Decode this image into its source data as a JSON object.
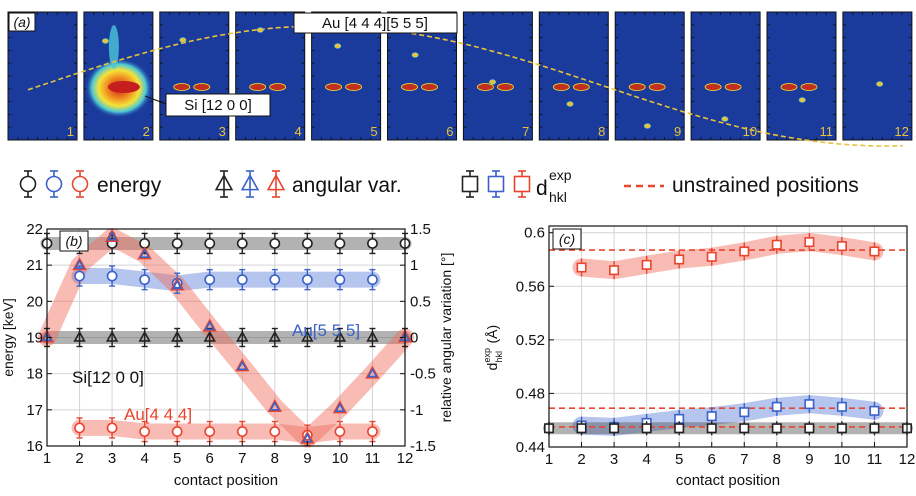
{
  "panel_a": {
    "label": "(a)",
    "frame_numbers": [
      "1",
      "2",
      "3",
      "4",
      "5",
      "6",
      "7",
      "8",
      "9",
      "10",
      "11",
      "12"
    ],
    "annotation_au": "Au [4 4 4][5 5 5]",
    "annotation_si": "Si [12 0 0]",
    "colors": {
      "background": "#1a3a9c",
      "trace": "#e7c23a",
      "spot": "#c0301c"
    }
  },
  "legend": {
    "energy": "energy",
    "angular": "angular var.",
    "d_main": "d",
    "d_sub": "hkl",
    "d_sup": "exp",
    "unstrained": "unstrained positions"
  },
  "colors": {
    "black": "#222222",
    "blue": "#3a62c8",
    "red": "#e8452f"
  },
  "chart_data": [
    {
      "type": "line",
      "panel_label": "(b)",
      "xlabel": "contact position",
      "ylabel_left": "energy [keV]",
      "ylabel_right": "relative angular variation [°]",
      "x_ticks": [
        1,
        2,
        3,
        4,
        5,
        6,
        7,
        8,
        9,
        10,
        11,
        12
      ],
      "ylim_left": [
        16,
        22
      ],
      "yticks_left": [
        16,
        17,
        18,
        19,
        20,
        21,
        22
      ],
      "ylim_right": [
        -1.5,
        1.5
      ],
      "yticks_right": [
        -1.5,
        -1,
        -0.5,
        0,
        0.5,
        1,
        1.5
      ],
      "ytick_labels_right": [
        "-1.5",
        "-1",
        "-0.5",
        "0",
        "0.5",
        "1",
        "1.5"
      ],
      "grid": true,
      "series_labels": {
        "au555": "Au[5 5 5]",
        "si": "Si[12 0 0]",
        "au444": "Au[4 4 4]"
      },
      "energy_series": [
        {
          "color": "black",
          "x": [
            1,
            2,
            3,
            4,
            5,
            6,
            7,
            8,
            9,
            10,
            11,
            12
          ],
          "y": [
            21.6,
            21.6,
            21.6,
            21.6,
            21.6,
            21.6,
            21.6,
            21.6,
            21.6,
            21.6,
            21.6,
            21.6
          ]
        },
        {
          "color": "blue",
          "x": [
            2,
            3,
            4,
            5,
            6,
            7,
            8,
            9,
            10,
            11
          ],
          "y": [
            20.7,
            20.7,
            20.6,
            20.5,
            20.6,
            20.6,
            20.6,
            20.6,
            20.6,
            20.6
          ]
        },
        {
          "color": "red",
          "x": [
            2,
            3,
            4,
            5,
            6,
            7,
            8,
            9,
            10,
            11
          ],
          "y": [
            16.5,
            16.5,
            16.4,
            16.4,
            16.4,
            16.4,
            16.4,
            16.3,
            16.4,
            16.4
          ]
        }
      ],
      "angular_series": [
        {
          "color": "black",
          "x": [
            1,
            2,
            3,
            4,
            5,
            6,
            7,
            8,
            9,
            10,
            11,
            12
          ],
          "y": [
            0,
            0,
            0,
            0,
            0,
            0,
            0,
            0,
            0,
            0,
            0,
            0
          ]
        },
        {
          "color": "blue",
          "x": [
            1,
            2,
            3,
            4,
            5,
            6,
            7,
            8,
            9,
            10,
            11,
            12
          ],
          "y": [
            0,
            1.0,
            1.39,
            1.15,
            0.72,
            0.15,
            -0.4,
            -0.96,
            -1.4,
            -0.98,
            -0.5,
            0
          ]
        },
        {
          "color": "red",
          "x": [
            1,
            2,
            3,
            4,
            5,
            6,
            7,
            8,
            9,
            10,
            11,
            12
          ],
          "y": [
            0,
            1.0,
            1.39,
            1.15,
            0.72,
            0.15,
            -0.4,
            -0.96,
            -1.4,
            -0.98,
            -0.5,
            0
          ]
        }
      ]
    },
    {
      "type": "line",
      "panel_label": "(c)",
      "xlabel": "contact position",
      "ylabel": "d",
      "ylabel_sub": "hkl",
      "ylabel_sup": "exp",
      "ylabel_unit": "(Å)",
      "x_ticks": [
        1,
        2,
        3,
        4,
        5,
        6,
        7,
        8,
        9,
        10,
        11,
        12
      ],
      "ylim": [
        0.44,
        0.605
      ],
      "yticks": [
        0.44,
        0.48,
        0.52,
        0.56,
        0.6
      ],
      "ytick_labels": [
        "0.44",
        "0.48",
        "0.52",
        "0.56",
        "0.6"
      ],
      "grid": true,
      "series": [
        {
          "color": "red",
          "x": [
            2,
            3,
            4,
            5,
            6,
            7,
            8,
            9,
            10,
            11
          ],
          "y": [
            0.574,
            0.572,
            0.576,
            0.58,
            0.582,
            0.586,
            0.591,
            0.593,
            0.59,
            0.586
          ]
        },
        {
          "color": "blue",
          "x": [
            2,
            3,
            4,
            5,
            6,
            7,
            8,
            9,
            10,
            11
          ],
          "y": [
            0.456,
            0.455,
            0.458,
            0.461,
            0.463,
            0.466,
            0.47,
            0.472,
            0.47,
            0.467
          ]
        },
        {
          "color": "black",
          "x": [
            1,
            2,
            3,
            4,
            5,
            6,
            7,
            8,
            9,
            10,
            11,
            12
          ],
          "y": [
            0.454,
            0.454,
            0.454,
            0.454,
            0.454,
            0.454,
            0.454,
            0.454,
            0.454,
            0.454,
            0.454,
            0.454
          ]
        }
      ],
      "unstrained": [
        {
          "color": "red",
          "y": 0.587
        },
        {
          "color": "blue",
          "y": 0.469
        },
        {
          "color": "black",
          "y": 0.455
        }
      ]
    }
  ]
}
